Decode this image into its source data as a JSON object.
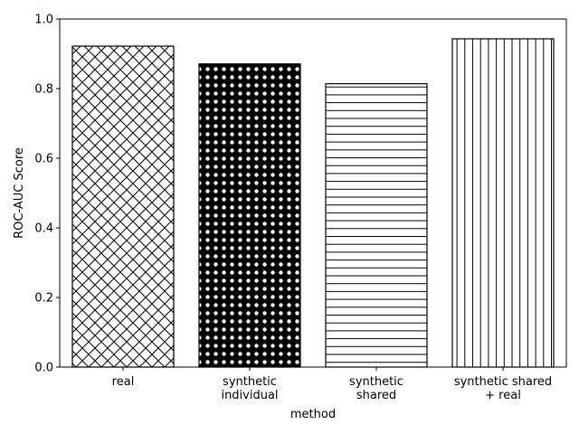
{
  "chart_data": {
    "type": "bar",
    "categories": [
      [
        "real"
      ],
      [
        "synthetic",
        "individual"
      ],
      [
        "synthetic",
        "shared"
      ],
      [
        "synthetic shared",
        "+ real"
      ]
    ],
    "values": [
      0.922,
      0.871,
      0.814,
      0.943
    ],
    "patterns": [
      "crosshatch",
      "dots",
      "horizontal",
      "vertical"
    ],
    "xlabel": "method",
    "ylabel": "ROC-AUC Score",
    "ylim": [
      0,
      1.0
    ],
    "yticks": [
      "0.0",
      "0.2",
      "0.4",
      "0.6",
      "0.8",
      "1.0"
    ],
    "grid": false,
    "colors": {
      "bar_fill": "#ffffff",
      "bar_edge": "#000000",
      "axis": "#000000"
    }
  }
}
